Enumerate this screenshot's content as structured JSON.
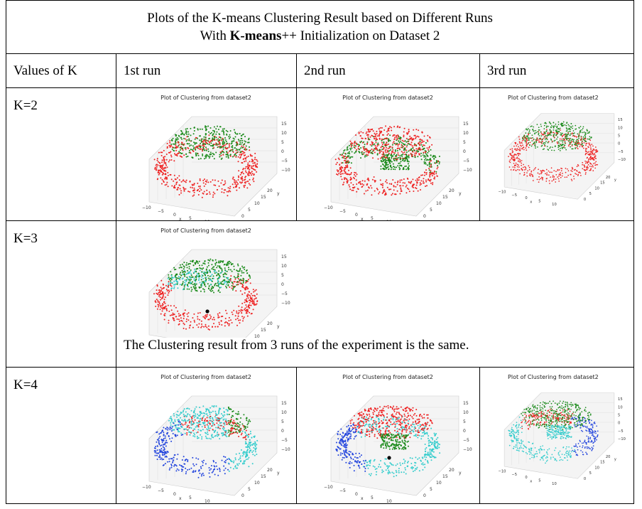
{
  "title": {
    "line1": "Plots of the K-means Clustering Result  based on Different Runs",
    "line2_prefix": "With ",
    "line2_bold": "K-means",
    "line2_suffix": "++  Initialization on Dataset 2"
  },
  "headers": [
    "Values of K",
    "1st run",
    "2nd run",
    "3rd run"
  ],
  "rows": [
    {
      "label": "K=2"
    },
    {
      "label": "K=3",
      "note": "The Clustering result from 3 runs of the experiment is the same."
    },
    {
      "label": "K=4"
    }
  ],
  "plot": {
    "title": "Plot of Clustering from dataset2",
    "xticks": [
      "−10",
      "−5",
      "0",
      "5",
      "10"
    ],
    "xlabel": "x",
    "yticks": [
      "0",
      "5",
      "10",
      "15",
      "20"
    ],
    "ylabel": "y",
    "zticks": [
      "15",
      "10",
      "5",
      "0",
      "−5",
      "−10"
    ]
  },
  "colors": {
    "red": "#ee2222",
    "green": "#1a8a1a",
    "cyan": "#33cccc",
    "blue": "#2244dd"
  }
}
